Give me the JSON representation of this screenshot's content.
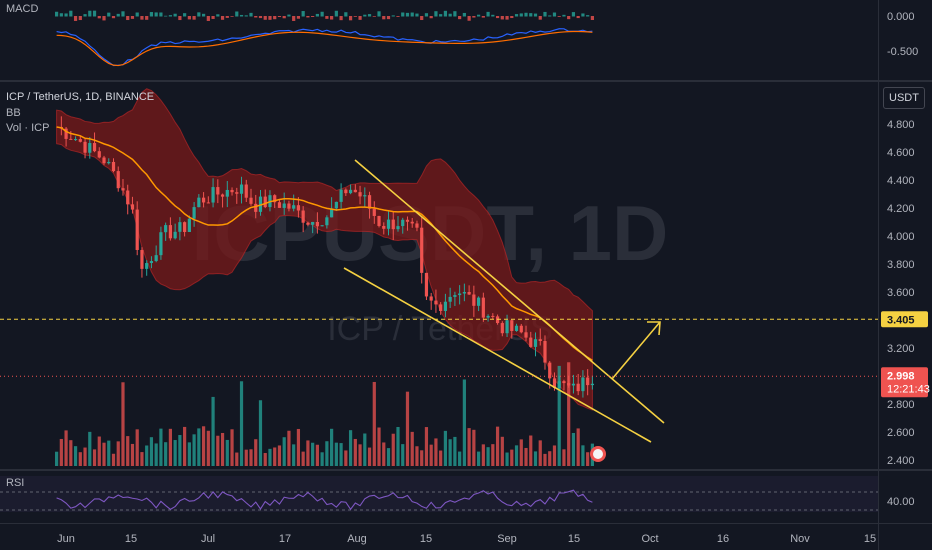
{
  "symbol": {
    "name": "ICP / TetherUS, 1D, BINANCE",
    "watermark": "ICPUSDT, 1D",
    "watermark_sub": "ICP / TetherUS"
  },
  "indicators": {
    "bb": "BB",
    "vol": "Vol · ICP",
    "macd": "MACD",
    "rsi": "RSI"
  },
  "currency_button": "USDT",
  "colors": {
    "background": "#131722",
    "up": "#26a69a",
    "down": "#ef5350",
    "bb_band": "#7a1a1a",
    "bb_basis": "#ff9800",
    "trendline": "#f5d142",
    "macd_line": "#2962ff",
    "signal_line": "#ff6d00",
    "rsi_line": "#7e57c2",
    "price_line": "#f5d142"
  },
  "price_axis": [
    "4.800",
    "4.600",
    "4.400",
    "4.200",
    "4.000",
    "3.800",
    "3.600",
    "3.200",
    "2.800",
    "2.600",
    "2.400"
  ],
  "macd_axis": [
    "0.000",
    "-0.500"
  ],
  "rsi_axis": [
    "40.00"
  ],
  "price_labels": {
    "level": "3.405",
    "current": "2.998",
    "countdown": "12:21:43"
  },
  "time_axis": [
    "Jun",
    "15",
    "Jul",
    "17",
    "Aug",
    "15",
    "Sep",
    "15",
    "Oct",
    "16",
    "Nov",
    "15"
  ],
  "chart_data": {
    "type": "candlestick",
    "title": "ICP / TetherUS, 1D, BINANCE",
    "series": [
      {
        "name": "BB",
        "kind": "bollinger_bands"
      },
      {
        "name": "Vol · ICP",
        "kind": "volume"
      },
      {
        "name": "MACD",
        "kind": "oscillator"
      },
      {
        "name": "RSI",
        "kind": "oscillator"
      }
    ],
    "price_range": [
      2.4,
      4.9
    ],
    "horizontal_level": 3.405,
    "last_price": 2.998,
    "close_path": [
      [
        "May 30",
        4.78
      ],
      [
        "Jun 3",
        4.7
      ],
      [
        "Jun 6",
        4.62
      ],
      [
        "Jun 9",
        4.55
      ],
      [
        "Jun 12",
        4.4
      ],
      [
        "Jun 15",
        4.2
      ],
      [
        "Jun 17",
        3.75
      ],
      [
        "Jun 19",
        3.85
      ],
      [
        "Jun 22",
        4.02
      ],
      [
        "Jun 26",
        4.05
      ],
      [
        "Jun 29",
        4.25
      ],
      [
        "Jul 3",
        4.3
      ],
      [
        "Jul 8",
        4.35
      ],
      [
        "Jul 11",
        4.22
      ],
      [
        "Jul 15",
        4.25
      ],
      [
        "Jul 19",
        4.2
      ],
      [
        "Jul 23",
        4.1
      ],
      [
        "Jul 27",
        4.15
      ],
      [
        "Jul 31",
        4.35
      ],
      [
        "Aug 3",
        4.28
      ],
      [
        "Aug 7",
        4.08
      ],
      [
        "Aug 11",
        4.1
      ],
      [
        "Aug 15",
        4.0
      ],
      [
        "Aug 16",
        3.55
      ],
      [
        "Aug 19",
        3.5
      ],
      [
        "Aug 23",
        3.62
      ],
      [
        "Aug 28",
        3.5
      ],
      [
        "Sep 2",
        3.35
      ],
      [
        "Sep 6",
        3.3
      ],
      [
        "Sep 10",
        3.2
      ],
      [
        "Sep 13",
        2.95
      ],
      [
        "Sep 17",
        2.9
      ],
      [
        "Sep 21",
        3.0
      ]
    ]
  }
}
